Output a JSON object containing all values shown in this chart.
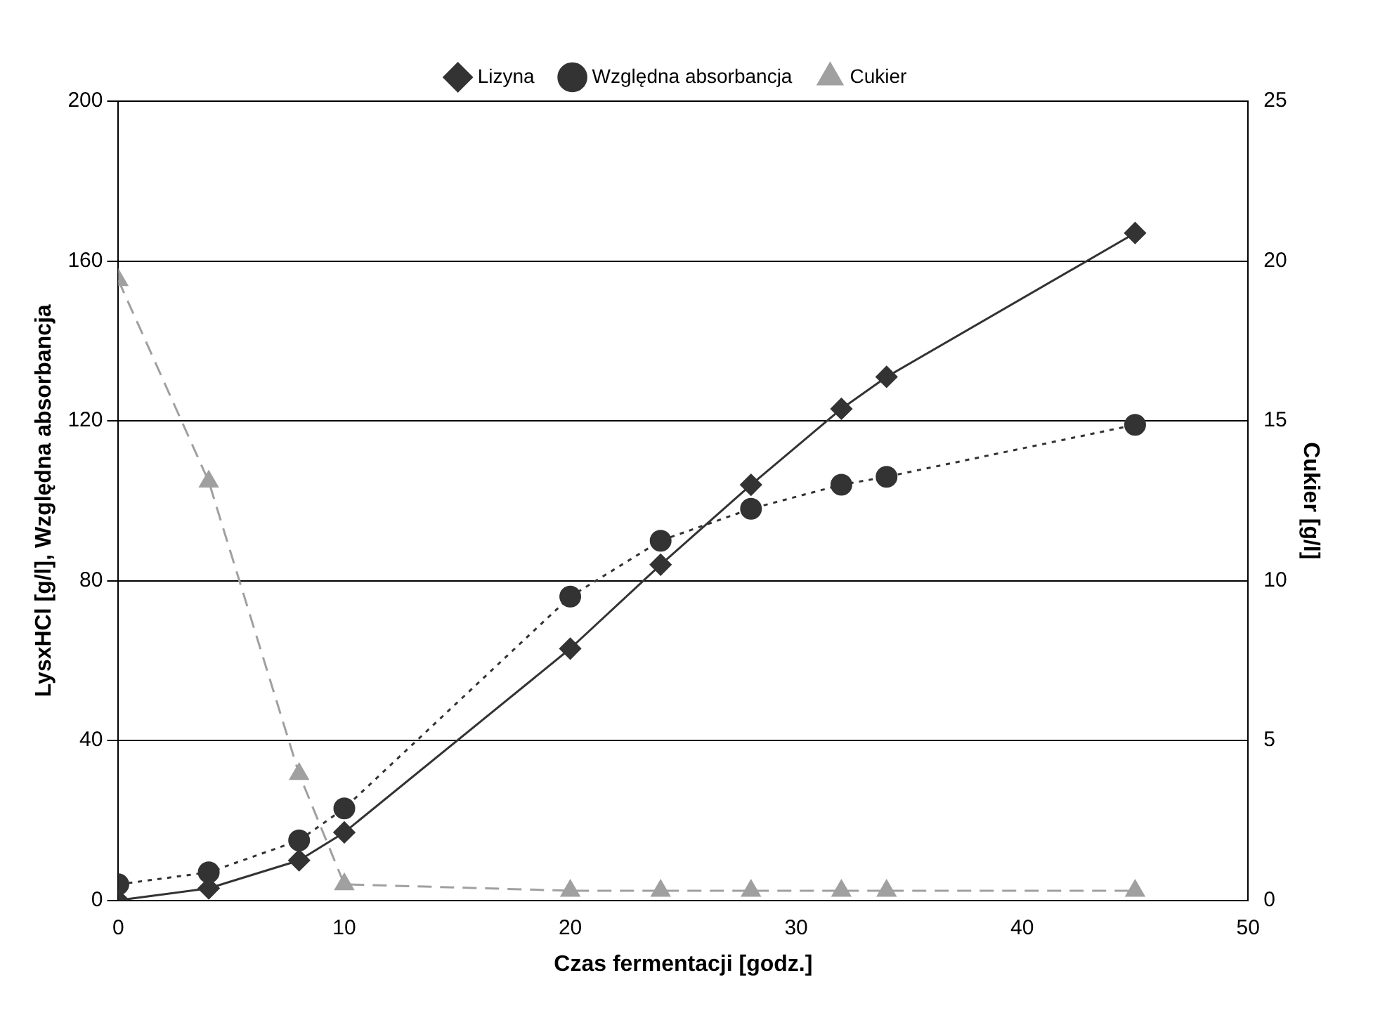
{
  "chart_data": {
    "type": "line",
    "xlabel": "Czas fermentacji [godz.]",
    "ylabel": "LysxHCl [g/l], Względna absorbancja",
    "y2label": "Cukier [g/l]",
    "x": [
      0,
      4,
      8,
      10,
      20,
      24,
      28,
      32,
      34,
      45
    ],
    "series": [
      {
        "name": "Lizyna",
        "color": "#333333",
        "marker": "diamond",
        "line_style": "solid",
        "values": [
          0,
          3,
          10,
          17,
          63,
          84,
          104,
          123,
          131,
          167
        ]
      },
      {
        "name": "Względna absorbancja",
        "color": "#333333",
        "marker": "circle",
        "line_style": "dotted",
        "values": [
          4,
          7,
          15,
          23,
          76,
          90,
          98,
          104,
          106,
          119
        ]
      },
      {
        "name": "Cukier",
        "color": "#a0a0a0",
        "marker": "triangle",
        "line_style": "dashed",
        "axis": "y2",
        "values": [
          19.4,
          13.1,
          3.95,
          0.5,
          0.3,
          0.3,
          0.3,
          0.3,
          0.3,
          0.3
        ]
      }
    ],
    "xlim": [
      0,
      50
    ],
    "xticks": [
      0,
      10,
      20,
      30,
      40,
      50
    ],
    "ylim": [
      0,
      200
    ],
    "yticks": [
      0,
      40,
      80,
      120,
      160,
      200
    ],
    "y2lim": [
      0,
      25
    ],
    "y2ticks": [
      0,
      5,
      10,
      15,
      20,
      25
    ],
    "grid": "y",
    "legend": "top"
  }
}
